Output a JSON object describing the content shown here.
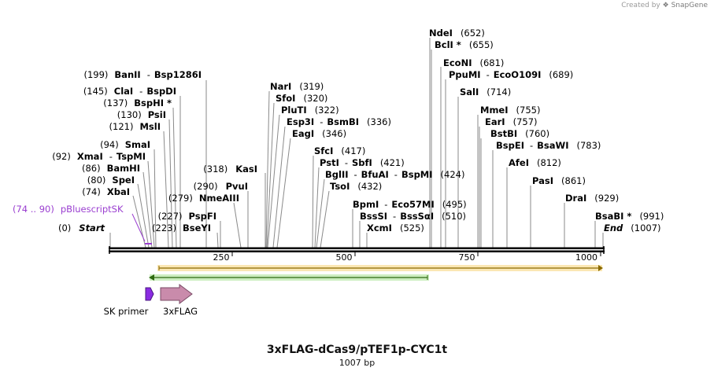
{
  "credit": {
    "prefix": "Created by",
    "brand": "SnapGene"
  },
  "title": "3xFLAG-dCas9/pTEF1p-CYC1t",
  "length_label": "1007 bp",
  "colors": {
    "primer": "#9a3ed0",
    "feature_flag": "#c98bab",
    "orf_orange": "#f0a030",
    "orf_green": "#5fb040",
    "sk_primer": "#8a2be2"
  },
  "axis": {
    "ticks": [
      "250",
      "500",
      "750",
      "1000"
    ]
  },
  "sites": [
    {
      "name": "NdeI",
      "pos": "(652)"
    },
    {
      "name": "BclI *",
      "pos": "(655)"
    },
    {
      "name": "EcoNI",
      "pos": "(681)"
    },
    {
      "name": "PpuMI",
      "alt": "EcoO109I",
      "pos": "(689)"
    },
    {
      "name": "SalI",
      "pos": "(714)"
    },
    {
      "name": "MmeI",
      "pos": "(755)"
    },
    {
      "name": "EarI",
      "pos": "(757)"
    },
    {
      "name": "BstBI",
      "pos": "(760)"
    },
    {
      "name": "BspEI",
      "alt": "BsaWI",
      "pos": "(783)"
    },
    {
      "name": "AfeI",
      "pos": "(812)"
    },
    {
      "name": "PasI",
      "pos": "(861)"
    },
    {
      "name": "DraI",
      "pos": "(929)"
    },
    {
      "name": "BsaBI *",
      "pos": "(991)"
    },
    {
      "name": "End",
      "pos": "(1007)"
    },
    {
      "name": "BanII",
      "alt": "Bsp1286I",
      "pos": "(199)"
    },
    {
      "name": "ClaI",
      "alt": "BspDI",
      "pos": "(145)"
    },
    {
      "name": "BspHI *",
      "pos": "(137)"
    },
    {
      "name": "PsiI",
      "pos": "(130)"
    },
    {
      "name": "MslI",
      "pos": "(121)"
    },
    {
      "name": "SmaI",
      "pos": "(94)"
    },
    {
      "name": "XmaI",
      "alt": "TspMI",
      "pos": "(92)"
    },
    {
      "name": "BamHI",
      "pos": "(86)"
    },
    {
      "name": "SpeI",
      "pos": "(80)"
    },
    {
      "name": "XbaI",
      "pos": "(74)"
    },
    {
      "name": "Start",
      "pos": "(0)"
    },
    {
      "name": "NarI",
      "pos": "(319)"
    },
    {
      "name": "SfoI",
      "pos": "(320)"
    },
    {
      "name": "PluTI",
      "pos": "(322)"
    },
    {
      "name": "Esp3I",
      "alt": "BsmBI",
      "pos": "(336)"
    },
    {
      "name": "EagI",
      "pos": "(346)"
    },
    {
      "name": "KasI",
      "pos": "(318)"
    },
    {
      "name": "PvuI",
      "pos": "(290)"
    },
    {
      "name": "NmeAIII",
      "pos": "(279)"
    },
    {
      "name": "PspFI",
      "pos": "(227)"
    },
    {
      "name": "BseYI",
      "pos": "(223)"
    },
    {
      "name": "SfcI",
      "pos": "(417)"
    },
    {
      "name": "PstI",
      "alt": "SbfI",
      "pos": "(421)"
    },
    {
      "name": "BglII",
      "alt": "BfuAI",
      "alt2": "BspMI",
      "pos": "(424)"
    },
    {
      "name": "TsoI",
      "pos": "(432)"
    },
    {
      "name": "BpmI",
      "alt": "Eco57MI",
      "pos": "(495)"
    },
    {
      "name": "BssSI",
      "alt": "BssSαI",
      "pos": "(510)"
    },
    {
      "name": "XcmI",
      "pos": "(525)"
    }
  ],
  "primer_label": {
    "range": "(74 .. 90)",
    "name": "pBluescriptSK"
  },
  "features": {
    "sk_primer": "SK primer",
    "flag": "3xFLAG"
  }
}
